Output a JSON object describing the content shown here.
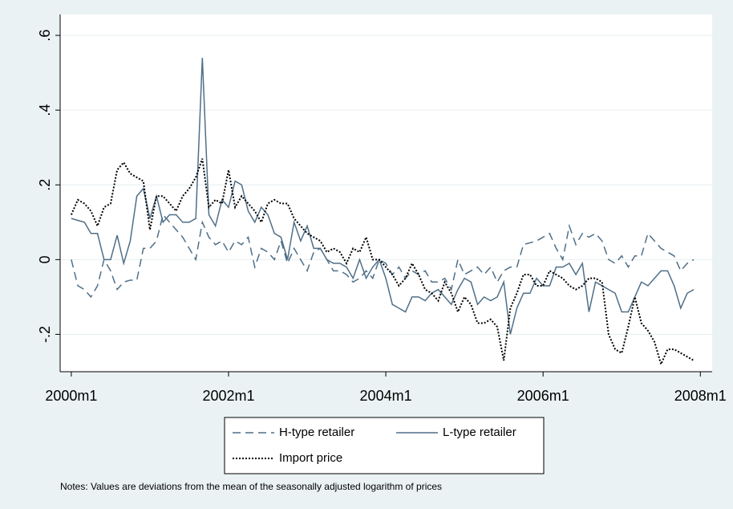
{
  "chart_data": {
    "type": "line",
    "x": [
      0,
      1,
      2,
      3,
      4,
      5,
      6,
      7,
      8,
      9,
      10,
      11,
      12,
      13,
      14,
      15,
      16,
      17,
      18,
      19,
      20,
      21,
      22,
      23,
      24,
      25,
      26,
      27,
      28,
      29,
      30,
      31,
      32,
      33,
      34,
      35,
      36,
      37,
      38,
      39,
      40,
      41,
      42,
      43,
      44,
      45,
      46,
      47,
      48,
      49,
      50,
      51,
      52,
      53,
      54,
      55,
      56,
      57,
      58,
      59,
      60,
      61,
      62,
      63,
      64,
      65,
      66,
      67,
      68,
      69,
      70,
      71,
      72,
      73,
      74,
      75,
      76,
      77,
      78,
      79,
      80,
      81,
      82,
      83,
      84,
      85,
      86,
      87,
      88,
      89,
      90,
      91,
      92,
      93,
      94,
      95
    ],
    "series": [
      {
        "name": "H-type retailer",
        "color": "#4f6f88",
        "dash": "10,6",
        "values": [
          0,
          -0.07,
          -0.08,
          -0.1,
          -0.07,
          0,
          -0.03,
          -0.08,
          -0.06,
          -0.055,
          -0.055,
          0.03,
          0.03,
          0.05,
          0.12,
          0.1,
          0.08,
          0.06,
          0.03,
          0,
          0.1,
          0.06,
          0.04,
          0.05,
          0.02,
          0.05,
          0.04,
          0.06,
          -0.02,
          0.03,
          0.02,
          0,
          0.05,
          -0.01,
          0.03,
          0,
          -0.03,
          0.02,
          0.03,
          0,
          -0.03,
          -0.03,
          -0.04,
          -0.06,
          -0.05,
          -0.03,
          -0.05,
          0,
          -0.01,
          -0.04,
          -0.02,
          -0.05,
          -0.03,
          -0.04,
          -0.03,
          -0.06,
          -0.06,
          -0.05,
          -0.08,
          0,
          -0.04,
          -0.03,
          -0.02,
          -0.04,
          -0.02,
          -0.06,
          -0.03,
          -0.02,
          -0.02,
          0.04,
          0.045,
          0.05,
          0.06,
          0.07,
          0.03,
          0,
          0.09,
          0.04,
          0.07,
          0.06,
          0.07,
          0.05,
          0,
          -0.01,
          0.01,
          -0.02,
          0.01,
          0.01,
          0.07,
          0.05,
          0.03,
          0.02,
          0.01,
          -0.03,
          -0.01,
          0
        ]
      },
      {
        "name": "L-type retailer",
        "color": "#4f6f88",
        "dash": "none",
        "values": [
          0.11,
          0.105,
          0.1,
          0.07,
          0.07,
          0,
          0,
          0.065,
          -0.01,
          0.05,
          0.17,
          0.19,
          0.11,
          0.17,
          0.1,
          0.12,
          0.12,
          0.1,
          0.1,
          0.11,
          0.54,
          0.12,
          0.09,
          0.16,
          0.14,
          0.21,
          0.2,
          0.13,
          0.1,
          0.14,
          0.12,
          0.07,
          0.06,
          0,
          0.1,
          0.05,
          0.09,
          0.03,
          0.03,
          0,
          -0.01,
          -0.01,
          -0.02,
          -0.05,
          0,
          -0.05,
          -0.02,
          0,
          -0.05,
          -0.12,
          -0.13,
          -0.14,
          -0.1,
          -0.1,
          -0.11,
          -0.09,
          -0.08,
          -0.1,
          -0.12,
          -0.08,
          -0.05,
          -0.06,
          -0.12,
          -0.1,
          -0.11,
          -0.1,
          -0.06,
          -0.2,
          -0.13,
          -0.09,
          -0.09,
          -0.05,
          -0.07,
          -0.07,
          -0.02,
          -0.02,
          -0.01,
          -0.04,
          -0.01,
          -0.14,
          -0.06,
          -0.07,
          -0.08,
          -0.09,
          -0.14,
          -0.14,
          -0.1,
          -0.06,
          -0.07,
          -0.05,
          -0.03,
          -0.03,
          -0.07,
          -0.13,
          -0.09,
          -0.08
        ]
      },
      {
        "name": "Import price",
        "color": "#000000",
        "dash": "2,2",
        "values": [
          0.12,
          0.16,
          0.15,
          0.13,
          0.09,
          0.14,
          0.15,
          0.24,
          0.26,
          0.23,
          0.22,
          0.21,
          0.08,
          0.17,
          0.17,
          0.15,
          0.13,
          0.17,
          0.19,
          0.22,
          0.27,
          0.14,
          0.16,
          0.15,
          0.24,
          0.14,
          0.17,
          0.15,
          0.13,
          0.1,
          0.15,
          0.16,
          0.15,
          0.15,
          0.11,
          0.09,
          0.07,
          0.06,
          0.05,
          0.02,
          0.03,
          0.02,
          -0.01,
          0.03,
          0.02,
          0.06,
          0,
          0,
          -0.02,
          -0.04,
          -0.07,
          -0.05,
          -0.01,
          -0.04,
          -0.08,
          -0.09,
          -0.11,
          -0.06,
          -0.09,
          -0.14,
          -0.1,
          -0.12,
          -0.17,
          -0.17,
          -0.16,
          -0.18,
          -0.27,
          -0.13,
          -0.09,
          -0.04,
          -0.04,
          -0.07,
          -0.07,
          -0.03,
          -0.04,
          -0.05,
          -0.07,
          -0.08,
          -0.07,
          -0.05,
          -0.05,
          -0.06,
          -0.2,
          -0.24,
          -0.25,
          -0.18,
          -0.1,
          -0.17,
          -0.19,
          -0.22,
          -0.28,
          -0.24,
          -0.24,
          -0.25,
          -0.26,
          -0.27
        ]
      }
    ],
    "xlim": [
      -1.7,
      97.8
    ],
    "xticks": [
      {
        "value": 0,
        "label": "2000m1"
      },
      {
        "value": 24,
        "label": "2002m1"
      },
      {
        "value": 48,
        "label": "2004m1"
      },
      {
        "value": 72,
        "label": "2006m1"
      },
      {
        "value": 96,
        "label": "2008m1"
      }
    ],
    "ylim": [
      -0.3,
      0.656
    ],
    "yticks": [
      {
        "value": -0.2,
        "label": "-.2"
      },
      0,
      {
        "value": 0.2,
        "label": ".2"
      },
      {
        "value": 0.4,
        "label": ".4"
      },
      {
        "value": 0.6,
        "label": ".6"
      }
    ],
    "grid": true,
    "note": "Notes: Values are deviations from the mean of the seasonally adjusted logarithm of prices"
  }
}
